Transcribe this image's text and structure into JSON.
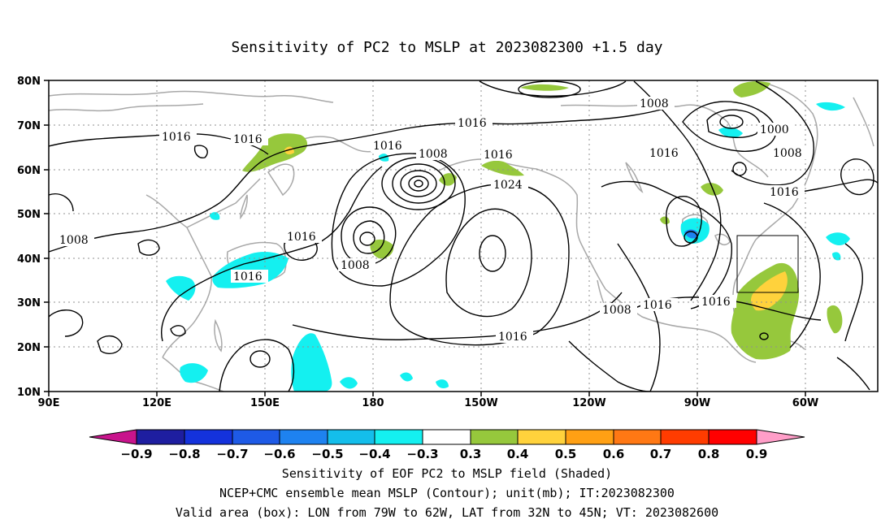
{
  "title": "Sensitivity of PC2 to MSLP at 2023082300 +1.5 day",
  "lat_labels": [
    "80N",
    "70N",
    "60N",
    "50N",
    "40N",
    "30N",
    "20N",
    "10N"
  ],
  "lon_labels": [
    "90E",
    "120E",
    "150E",
    "180",
    "150W",
    "120W",
    "90W",
    "60W"
  ],
  "contour_labels": [
    "1016",
    "1016",
    "1016",
    "1016",
    "1016",
    "1008",
    "1016",
    "1024",
    "1008",
    "1016",
    "1000",
    "1008",
    "1016",
    "1008",
    "1016",
    "1008",
    "1016",
    "1016",
    "1008",
    "1016",
    "1016"
  ],
  "colorbar": {
    "labels": [
      "−0.9",
      "−0.8",
      "−0.7",
      "−0.6",
      "−0.5",
      "−0.4",
      "−0.3",
      "0.3",
      "0.4",
      "0.5",
      "0.6",
      "0.7",
      "0.8",
      "0.9"
    ],
    "colors": [
      "#c8148c",
      "#1e1ea0",
      "#1432dc",
      "#1e5ae6",
      "#1e82f0",
      "#14beeb",
      "#14f0f0",
      "#ffffff",
      "#96c83c",
      "#ffd23c",
      "#ffa014",
      "#ff7814",
      "#ff3c00",
      "#ff0000",
      "#ff9ec8"
    ]
  },
  "captions": [
    "Sensitivity of EOF PC2 to MSLP field (Shaded)",
    "NCEP+CMC ensemble mean MSLP (Contour); unit(mb); IT:2023082300",
    "Valid area (box): LON from 79W to 62W, LAT from 32N to 45N; VT: 2023082600"
  ]
}
